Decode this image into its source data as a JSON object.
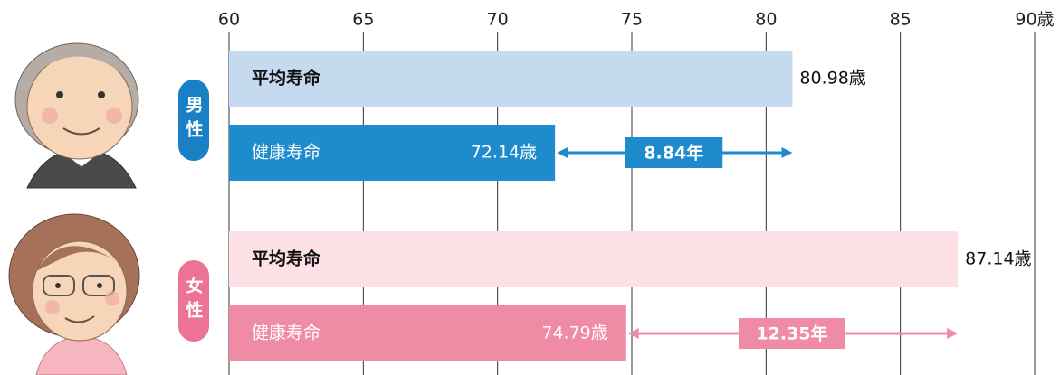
{
  "chart_data": {
    "type": "bar",
    "categories": [
      "男性",
      "女性"
    ],
    "category_colors": [
      "#1a7fc4",
      "#ec7396"
    ],
    "series": [
      {
        "name": "平均寿命",
        "values": [
          80.98,
          87.14
        ],
        "value_labels": [
          "80.98歳",
          "87.14歳"
        ],
        "colors": [
          "#c6daef",
          "#fde1e7"
        ]
      },
      {
        "name": "健康寿命",
        "values": [
          72.14,
          74.79
        ],
        "value_labels": [
          "72.14歳",
          "74.79歳"
        ],
        "colors": [
          "#1d8bcc",
          "#f08ba6"
        ]
      }
    ],
    "gaps": {
      "values": [
        8.84,
        12.35
      ],
      "value_labels": [
        "8.84年",
        "12.35年"
      ]
    },
    "xlim": [
      60,
      90
    ],
    "xticks": [
      60,
      65,
      70,
      75,
      80,
      85,
      {
        "value": 90,
        "label": "90歳"
      }
    ],
    "grid": true
  }
}
